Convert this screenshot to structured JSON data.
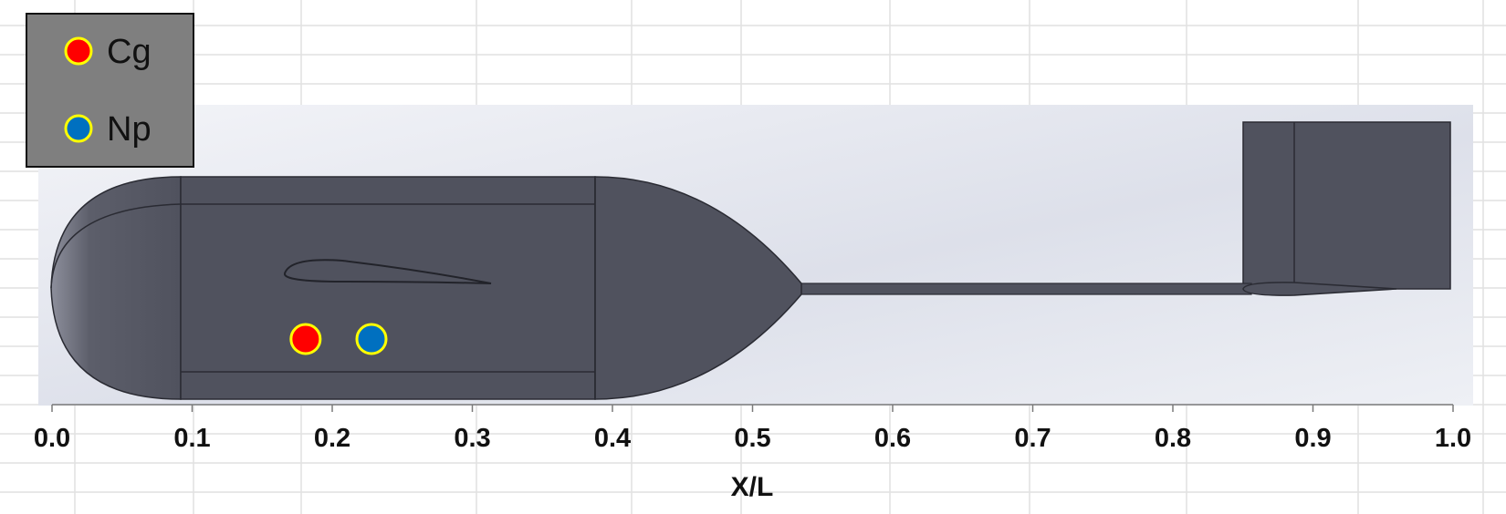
{
  "chart_data": {
    "type": "scatter",
    "title": "",
    "xlabel": "X/L",
    "ylabel": "",
    "xlim": [
      0.0,
      1.0
    ],
    "x_ticks": [
      "0.0",
      "0.1",
      "0.2",
      "0.3",
      "0.4",
      "0.5",
      "0.6",
      "0.7",
      "0.8",
      "0.9",
      "1.0"
    ],
    "grid": true,
    "legend_position": "top-left",
    "series": [
      {
        "name": "Cg",
        "x": [
          0.181
        ],
        "color": "#ff0000"
      },
      {
        "name": "Np",
        "x": [
          0.228
        ],
        "color": "#0070c0"
      }
    ],
    "marker_outline_color": "#ffff00",
    "background_image": "side-view-vehicle-rendering"
  }
}
